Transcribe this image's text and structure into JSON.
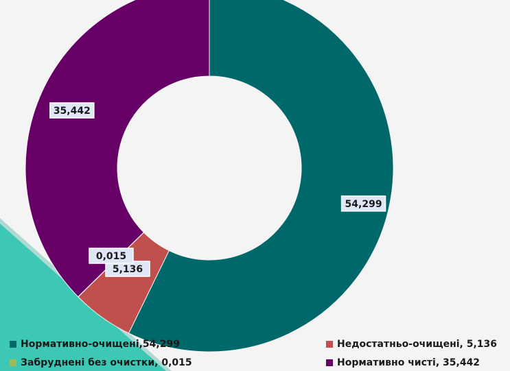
{
  "chart_data": {
    "type": "pie",
    "variant": "donut",
    "title": "",
    "legend_position": "bottom",
    "series": [
      {
        "name": "Нормативно-очищені",
        "value": 54.299,
        "label": "54,299",
        "legend_label": "Нормативно-очищені,54,299",
        "color": "#00686a"
      },
      {
        "name": "Недостатньо-очищені",
        "value": 5.136,
        "label": "5,136",
        "legend_label": "Недостатньо-очищені, 5,136",
        "color": "#c0504d"
      },
      {
        "name": "Забруднені без очистки",
        "value": 0.015,
        "label": "0,015",
        "legend_label": "Забруднені без очистки, 0,015",
        "color": "#9bbb59"
      },
      {
        "name": "Нормативно чисті",
        "value": 35.442,
        "label": "35,442",
        "legend_label": "Нормативно чисті, 35,442",
        "color": "#660066"
      }
    ]
  },
  "decoration": {
    "corner_accent_color": "#3cc8b4"
  }
}
